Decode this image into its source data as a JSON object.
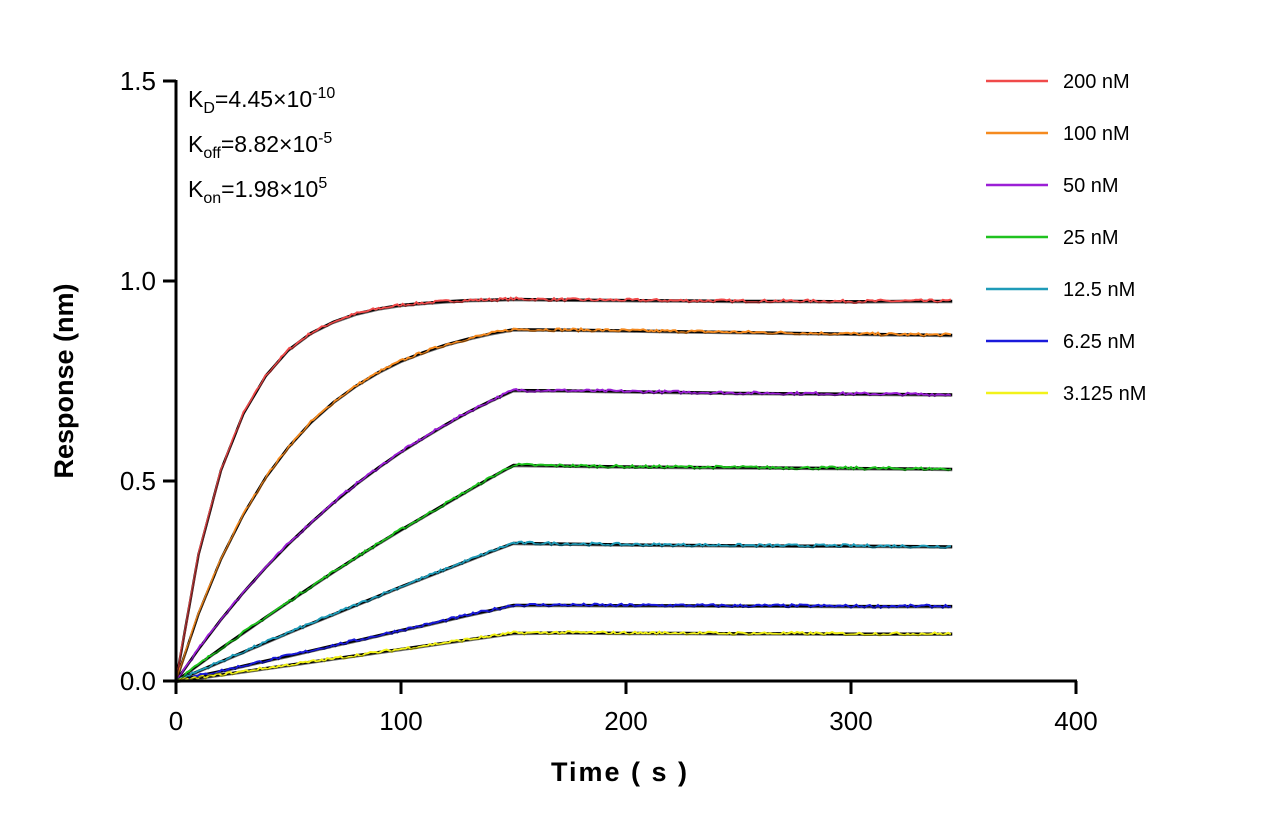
{
  "chart_data": {
    "type": "line",
    "title": "",
    "xlabel": "Time ( s )",
    "ylabel": "Response (nm)",
    "xlim": [
      0,
      400
    ],
    "ylim": [
      0,
      1.5
    ],
    "xticks": [
      "0",
      "100",
      "200",
      "300",
      "400"
    ],
    "yticks": [
      "0.0",
      "0.5",
      "1.0",
      "1.5"
    ],
    "grid": false,
    "legend_position": "right",
    "fit_line_color": "#000000",
    "annotations": [
      {
        "k": "K",
        "sub": "D",
        "value": "=4.45×10",
        "sup": "-10"
      },
      {
        "k": "K",
        "sub": "off",
        "value": "=8.82×10",
        "sup": "-5"
      },
      {
        "k": "K",
        "sub": "on",
        "value": "=1.98×10",
        "sup": "5"
      }
    ],
    "x": [
      0,
      10,
      20,
      30,
      40,
      50,
      60,
      70,
      80,
      90,
      100,
      110,
      120,
      130,
      140,
      150,
      175,
      200,
      225,
      250,
      275,
      300,
      325,
      345
    ],
    "series": [
      {
        "name": "200 nM",
        "color": "#f04a4a",
        "values": [
          0,
          0.316,
          0.527,
          0.669,
          0.764,
          0.828,
          0.87,
          0.898,
          0.918,
          0.931,
          0.94,
          0.945,
          0.949,
          0.952,
          0.953,
          0.955,
          0.953,
          0.952,
          0.951,
          0.95,
          0.95,
          0.949,
          0.95,
          0.95
        ]
      },
      {
        "name": "100 nM",
        "color": "#f58a1f",
        "values": [
          0,
          0.168,
          0.305,
          0.417,
          0.51,
          0.585,
          0.647,
          0.697,
          0.738,
          0.772,
          0.8,
          0.822,
          0.841,
          0.856,
          0.869,
          0.879,
          0.878,
          0.876,
          0.874,
          0.872,
          0.87,
          0.868,
          0.866,
          0.865
        ]
      },
      {
        "name": "50 nM",
        "color": "#9b1fd6",
        "values": [
          0,
          0.08,
          0.154,
          0.222,
          0.285,
          0.343,
          0.396,
          0.446,
          0.492,
          0.534,
          0.573,
          0.608,
          0.642,
          0.673,
          0.701,
          0.727,
          0.726,
          0.724,
          0.722,
          0.72,
          0.719,
          0.718,
          0.717,
          0.716
        ]
      },
      {
        "name": "25 nM",
        "color": "#1fc21f",
        "values": [
          0,
          0.041,
          0.082,
          0.121,
          0.16,
          0.198,
          0.236,
          0.273,
          0.309,
          0.344,
          0.378,
          0.411,
          0.444,
          0.477,
          0.509,
          0.54,
          0.538,
          0.536,
          0.535,
          0.534,
          0.533,
          0.532,
          0.531,
          0.53
        ]
      },
      {
        "name": "12.5 nM",
        "color": "#1f9bb8",
        "values": [
          0,
          0.025,
          0.049,
          0.073,
          0.097,
          0.121,
          0.144,
          0.167,
          0.19,
          0.213,
          0.236,
          0.258,
          0.28,
          0.302,
          0.324,
          0.345,
          0.343,
          0.341,
          0.34,
          0.339,
          0.338,
          0.338,
          0.337,
          0.336
        ]
      },
      {
        "name": "6.25 nM",
        "color": "#1a1adb",
        "values": [
          0,
          0.013,
          0.025,
          0.038,
          0.051,
          0.063,
          0.076,
          0.089,
          0.101,
          0.114,
          0.127,
          0.139,
          0.152,
          0.165,
          0.177,
          0.19,
          0.19,
          0.189,
          0.189,
          0.188,
          0.188,
          0.187,
          0.187,
          0.187
        ]
      },
      {
        "name": "3.125 nM",
        "color": "#f2f21a",
        "values": [
          0,
          0.008,
          0.016,
          0.024,
          0.032,
          0.04,
          0.048,
          0.056,
          0.064,
          0.072,
          0.08,
          0.088,
          0.096,
          0.104,
          0.112,
          0.12,
          0.121,
          0.12,
          0.12,
          0.119,
          0.119,
          0.118,
          0.118,
          0.118
        ]
      }
    ]
  }
}
